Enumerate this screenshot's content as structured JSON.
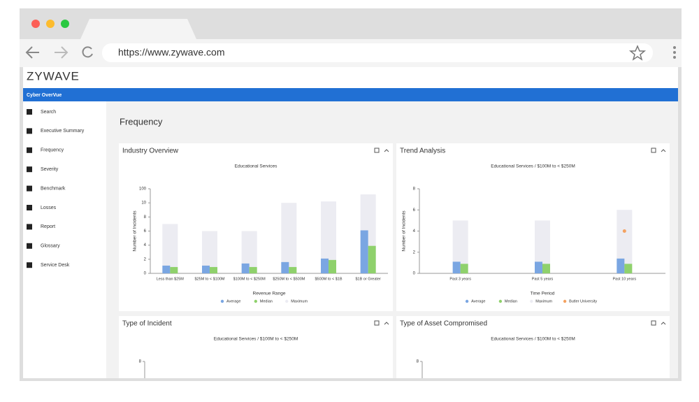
{
  "browser": {
    "url": "https://www.zywave.com"
  },
  "app": {
    "logo": "ZYWAVE",
    "product": "Cyber OverVue",
    "nav": [
      "Search",
      "Executive Summary",
      "Frequency",
      "Severity",
      "Benchmark",
      "Losses",
      "Report",
      "Glossary",
      "Service Desk"
    ],
    "page_title": "Frequency"
  },
  "panels": [
    {
      "title": "Industry Overview",
      "chart_data": {
        "type": "bar",
        "subtitle": "Educational Services",
        "categories": [
          "Less than $25M",
          "$25M to < $100M",
          "$100M to < $250M",
          "$250M to < $500M",
          "$500M to < $1B",
          "$1B or Greater"
        ],
        "series": [
          {
            "name": "Average",
            "color": "#7aa6e2",
            "kind": "bar",
            "values": [
              1.1,
              1.1,
              1.4,
              1.6,
              2.1,
              6.1
            ]
          },
          {
            "name": "Median",
            "color": "#8fd16c",
            "kind": "bar",
            "values": [
              0.9,
              0.9,
              0.9,
              0.9,
              1.9,
              3.9
            ]
          },
          {
            "name": "Maximum",
            "color": "#ececf2",
            "kind": "range",
            "values": [
              7,
              6,
              6,
              10,
              19,
              64
            ]
          }
        ],
        "ylim": [
          0,
          100
        ],
        "yticks": [
          0,
          2,
          4,
          6,
          8,
          10,
          100
        ],
        "ylabel": "Number of Incidents",
        "xlabel": "Revenue Range"
      }
    },
    {
      "title": "Trend Analysis",
      "chart_data": {
        "type": "bar",
        "subtitle": "Educational Services / $100M to < $250M",
        "categories": [
          "Past 3 years",
          "Past 5 years",
          "Past 10 years"
        ],
        "series": [
          {
            "name": "Average",
            "color": "#7aa6e2",
            "kind": "bar",
            "values": [
              1.1,
              1.1,
              1.4
            ]
          },
          {
            "name": "Median",
            "color": "#8fd16c",
            "kind": "bar",
            "values": [
              0.9,
              0.9,
              0.9
            ]
          },
          {
            "name": "Maximum",
            "color": "#ececf2",
            "kind": "range",
            "values": [
              5,
              5,
              6
            ]
          },
          {
            "name": "Butler University",
            "color": "#f4a261",
            "kind": "scatter",
            "values": [
              null,
              null,
              4
            ]
          }
        ],
        "ylim": [
          0,
          8
        ],
        "yticks": [
          0,
          2,
          4,
          6,
          8
        ],
        "ylabel": "Number of Incidents",
        "xlabel": "Time Period"
      }
    },
    {
      "title": "Type of Incident",
      "chart_data": {
        "type": "bar",
        "subtitle": "Educational Services / $100M to < $250M",
        "yticks": [
          8
        ]
      }
    },
    {
      "title": "Type of Asset Compromised",
      "chart_data": {
        "type": "bar",
        "subtitle": "Educational Services / $100M to < $250M",
        "yticks": [
          8
        ]
      }
    }
  ]
}
